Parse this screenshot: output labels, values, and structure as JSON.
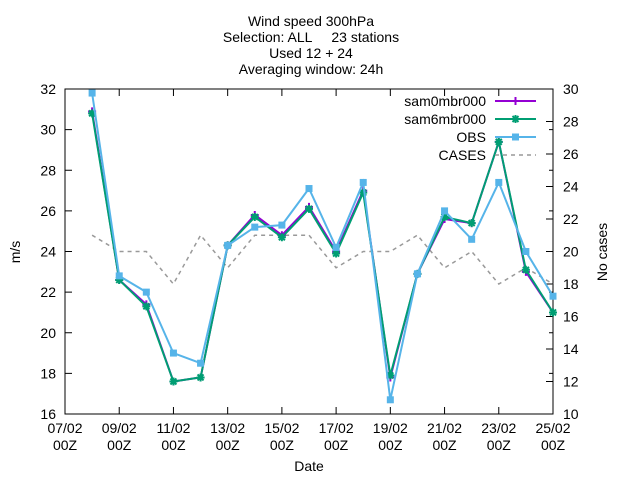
{
  "chart_data": {
    "type": "line",
    "title_lines": [
      "Wind speed 300hPa",
      "Selection: ALL     23 stations",
      "Used 12 + 24",
      "Averaging window: 24h"
    ],
    "xlabel": "Date",
    "ylabel": "m/s",
    "y2label": "No cases",
    "ylim": [
      16,
      32
    ],
    "y2lim": [
      10,
      30
    ],
    "yticks": [
      "16",
      "18",
      "20",
      "22",
      "24",
      "26",
      "28",
      "30",
      "32"
    ],
    "y2ticks": [
      "10",
      "12",
      "14",
      "16",
      "18",
      "20",
      "22",
      "24",
      "26",
      "28",
      "30"
    ],
    "xlim": [
      0,
      18
    ],
    "xticks": [
      {
        "x": 0,
        "date": "07/02",
        "hour": "00Z"
      },
      {
        "x": 2,
        "date": "09/02",
        "hour": "00Z"
      },
      {
        "x": 4,
        "date": "11/02",
        "hour": "00Z"
      },
      {
        "x": 6,
        "date": "13/02",
        "hour": "00Z"
      },
      {
        "x": 8,
        "date": "15/02",
        "hour": "00Z"
      },
      {
        "x": 10,
        "date": "17/02",
        "hour": "00Z"
      },
      {
        "x": 12,
        "date": "19/02",
        "hour": "00Z"
      },
      {
        "x": 14,
        "date": "21/02",
        "hour": "00Z"
      },
      {
        "x": 16,
        "date": "23/02",
        "hour": "00Z"
      },
      {
        "x": 18,
        "date": "25/02",
        "hour": "00Z"
      }
    ],
    "x": [
      1,
      2,
      3,
      4,
      5,
      6,
      7,
      8,
      9,
      10,
      11,
      12,
      13,
      14,
      15,
      16,
      17,
      18
    ],
    "legend_position": "top-right",
    "grid": false,
    "series": [
      {
        "name": "sam0mbr000",
        "axis": "y1",
        "color": "#9400d3",
        "marker": "plus",
        "dash": false,
        "values": [
          30.9,
          22.6,
          21.4,
          17.6,
          17.8,
          24.3,
          25.8,
          24.8,
          26.2,
          24.0,
          27.0,
          17.8,
          22.9,
          25.6,
          25.4,
          29.4,
          23.0,
          21.0
        ]
      },
      {
        "name": "sam6mbr000",
        "axis": "y1",
        "color": "#009e73",
        "marker": "star",
        "dash": false,
        "values": [
          30.8,
          22.6,
          21.3,
          17.6,
          17.8,
          24.3,
          25.7,
          24.7,
          26.1,
          23.9,
          26.9,
          17.9,
          22.9,
          25.7,
          25.4,
          29.4,
          23.1,
          21.0
        ]
      },
      {
        "name": "OBS",
        "axis": "y1",
        "color": "#56b4e9",
        "marker": "box",
        "dash": false,
        "values": [
          31.8,
          22.8,
          22.0,
          19.0,
          18.5,
          24.3,
          25.2,
          25.3,
          27.1,
          24.2,
          27.4,
          16.7,
          22.9,
          26.0,
          24.6,
          27.4,
          24.0,
          21.8
        ]
      },
      {
        "name": "CASES",
        "axis": "y2",
        "color": "#999999",
        "marker": "none",
        "dash": true,
        "values": [
          21,
          20,
          20,
          18,
          21,
          19,
          21,
          21,
          21,
          19,
          20,
          20,
          21,
          19,
          20,
          18,
          19,
          18
        ]
      }
    ]
  }
}
